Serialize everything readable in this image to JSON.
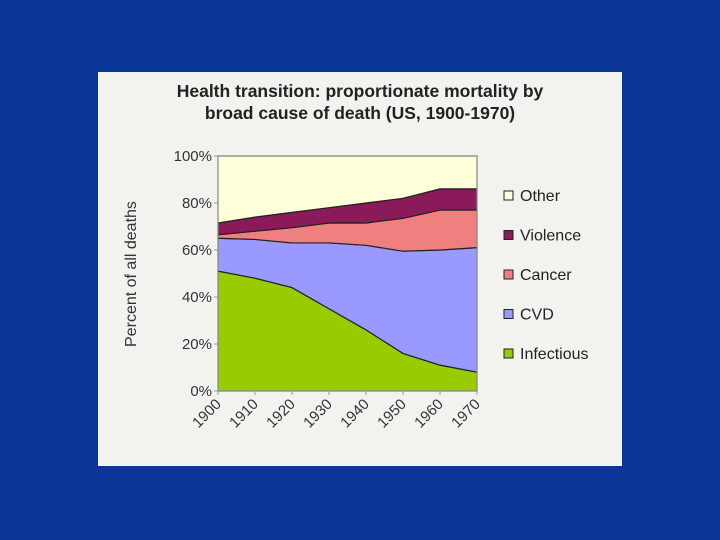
{
  "chart_data": {
    "type": "area",
    "stacked": true,
    "title": "Health transition: proportionate mortality by broad cause of death (US, 1900-1970)",
    "title_lines": [
      "Health transition: proportionate mortality by",
      "broad cause of death (US, 1900-1970)"
    ],
    "xlabel": "",
    "ylabel": "Percent of all deaths",
    "x": [
      1900,
      1910,
      1920,
      1930,
      1940,
      1950,
      1960,
      1970
    ],
    "x_tick_labels": [
      "1900",
      "1910",
      "1920",
      "1930",
      "1940",
      "1950",
      "1960",
      "1970"
    ],
    "y_tick_labels": [
      "0%",
      "20%",
      "40%",
      "60%",
      "80%",
      "100%"
    ],
    "ylim": [
      0,
      100
    ],
    "grid": false,
    "legend_position": "right",
    "series": [
      {
        "name": "Infectious",
        "color": "#99cc00",
        "values": [
          51,
          48,
          44,
          35,
          26,
          16,
          11,
          8
        ]
      },
      {
        "name": "CVD",
        "color": "#9999ff",
        "values": [
          14,
          16.5,
          19,
          28,
          36,
          43.5,
          49,
          53
        ]
      },
      {
        "name": "Cancer",
        "color": "#f08080",
        "values": [
          1.5,
          3.5,
          6.5,
          8.5,
          9.5,
          14,
          17,
          16
        ]
      },
      {
        "name": "Violence",
        "color": "#8b1a5a",
        "values": [
          5,
          6,
          6.5,
          6.5,
          8.5,
          8.5,
          9,
          9
        ]
      },
      {
        "name": "Other",
        "color": "#ffffd9",
        "values": [
          28.5,
          26,
          24,
          22,
          20,
          18,
          14,
          14
        ]
      }
    ]
  }
}
